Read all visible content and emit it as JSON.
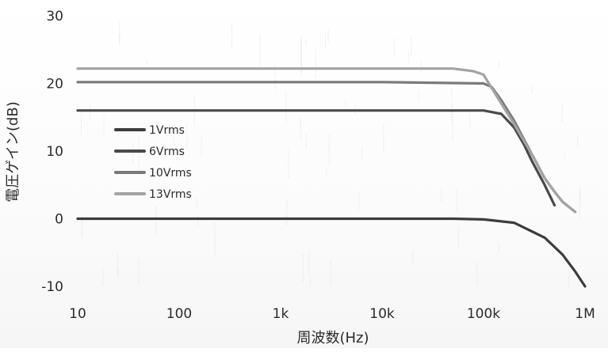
{
  "chart_data": {
    "type": "line",
    "title": "",
    "xlabel": "周波数(Hz)",
    "ylabel": "電圧ゲイン(dB)",
    "x_scale": "log",
    "xlim": [
      10,
      1000000
    ],
    "ylim": [
      -10,
      30
    ],
    "x_ticks": [
      10,
      100,
      1000,
      10000,
      100000,
      1000000
    ],
    "x_tick_labels": [
      "10",
      "100",
      "1k",
      "10k",
      "100k",
      "1M"
    ],
    "y_ticks": [
      -10,
      0,
      10,
      20,
      30
    ],
    "y_tick_labels": [
      "-10",
      "0",
      "10",
      "20",
      "30"
    ],
    "grid": false,
    "legend_position": "left",
    "series": [
      {
        "name": "1Vrms",
        "color": "#3c3c3c",
        "x": [
          10,
          100,
          1000,
          10000,
          50000,
          100000,
          200000,
          400000,
          600000,
          800000,
          1000000
        ],
        "y": [
          0,
          0,
          0,
          0,
          0,
          -0.1,
          -0.6,
          -2.8,
          -5.3,
          -7.8,
          -10
        ]
      },
      {
        "name": "6Vrms",
        "color": "#4a4a4a",
        "x": [
          10,
          100,
          1000,
          10000,
          100000,
          150000,
          200000,
          250000,
          300000,
          400000,
          500000
        ],
        "y": [
          16,
          16,
          16,
          16,
          16,
          15.5,
          13.5,
          11,
          8.5,
          5,
          2
        ]
      },
      {
        "name": "10Vrms",
        "color": "#7a7a7a",
        "x": [
          10,
          100,
          1000,
          10000,
          100000,
          120000,
          150000,
          200000,
          300000,
          400000,
          500000,
          600000,
          800000
        ],
        "y": [
          20.2,
          20.2,
          20.2,
          20.2,
          20,
          19.5,
          17.5,
          14.5,
          9.5,
          6,
          4,
          2.5,
          1
        ]
      },
      {
        "name": "13Vrms",
        "color": "#a3a3a3",
        "x": [
          10,
          100,
          1000,
          10000,
          50000,
          80000,
          100000,
          130000,
          200000,
          300000,
          400000,
          500000,
          600000,
          800000
        ],
        "y": [
          22.2,
          22.2,
          22.2,
          22.2,
          22.2,
          21.8,
          21.3,
          18.5,
          14,
          9.5,
          6,
          4,
          2.5,
          1
        ]
      }
    ]
  }
}
